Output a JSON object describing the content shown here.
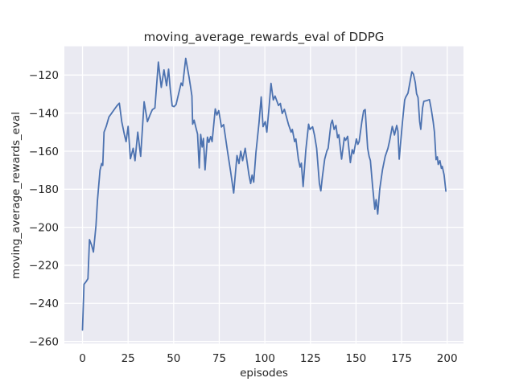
{
  "chart_data": {
    "type": "line",
    "title": "moving_average_rewards_eval of DDPG",
    "xlabel": "episodes",
    "ylabel": "moving_average_rewards_eval",
    "xlim": [
      -9.95,
      208.95
    ],
    "ylim": [
      -261.1,
      -104.9
    ],
    "grid": true,
    "legend": null,
    "x_ticks": {
      "values": [
        0,
        25,
        50,
        75,
        100,
        125,
        150,
        175,
        200
      ],
      "labels": [
        "0",
        "25",
        "50",
        "75",
        "100",
        "125",
        "150",
        "175",
        "200"
      ]
    },
    "y_ticks": {
      "values": [
        -260,
        -240,
        -220,
        -200,
        -180,
        -160,
        -140,
        -120
      ],
      "labels": [
        "−260",
        "−240",
        "−220",
        "−200",
        "−180",
        "−160",
        "−140",
        "−120"
      ]
    },
    "colors": {
      "figure_background": "#ffffff",
      "plot_background": "#eaeaf2",
      "grid": "#ffffff",
      "text": "#262626",
      "line": "#4c72b0"
    },
    "series": [
      {
        "name": "moving_average_rewards_eval",
        "color": "#4c72b0",
        "points": [
          [
            0,
            -254
          ],
          [
            0.8,
            -230
          ],
          [
            2,
            -228.5
          ],
          [
            3,
            -227
          ],
          [
            3.8,
            -206.5
          ],
          [
            5,
            -209.5
          ],
          [
            6,
            -213
          ],
          [
            7.4,
            -199
          ],
          [
            8.2,
            -186
          ],
          [
            9.6,
            -170
          ],
          [
            10.5,
            -166.5
          ],
          [
            11.1,
            -167.5
          ],
          [
            11.8,
            -150
          ],
          [
            13,
            -147
          ],
          [
            14.5,
            -142
          ],
          [
            16,
            -140
          ],
          [
            17.5,
            -138
          ],
          [
            19,
            -136
          ],
          [
            20.2,
            -134.8
          ],
          [
            21.5,
            -144.5
          ],
          [
            23,
            -151.5
          ],
          [
            23.9,
            -155
          ],
          [
            25,
            -147
          ],
          [
            26.3,
            -164
          ],
          [
            27.8,
            -158.5
          ],
          [
            28.8,
            -165
          ],
          [
            30.3,
            -150
          ],
          [
            31.9,
            -162.7
          ],
          [
            33.8,
            -134
          ],
          [
            35.6,
            -144.5
          ],
          [
            37,
            -141
          ],
          [
            38.3,
            -138.2
          ],
          [
            39.7,
            -137.3
          ],
          [
            41.6,
            -113.2
          ],
          [
            43.2,
            -126.5
          ],
          [
            44.7,
            -117.3
          ],
          [
            46.1,
            -125.6
          ],
          [
            47.2,
            -116.9
          ],
          [
            48.1,
            -127
          ],
          [
            49.2,
            -136.2
          ],
          [
            50.2,
            -136.6
          ],
          [
            51.3,
            -135.5
          ],
          [
            54.1,
            -124.2
          ],
          [
            54.9,
            -125.6
          ],
          [
            56.6,
            -111.2
          ],
          [
            58.4,
            -121
          ],
          [
            59.4,
            -127
          ],
          [
            60,
            -131
          ],
          [
            60.4,
            -145.8
          ],
          [
            61.2,
            -143.7
          ],
          [
            62.3,
            -148
          ],
          [
            63.1,
            -151
          ],
          [
            64,
            -168.8
          ],
          [
            64.8,
            -151.2
          ],
          [
            65.6,
            -157.8
          ],
          [
            66.3,
            -153.3
          ],
          [
            67.2,
            -169.8
          ],
          [
            68.5,
            -152.6
          ],
          [
            69.3,
            -155.4
          ],
          [
            70.3,
            -152.3
          ],
          [
            71.1,
            -155
          ],
          [
            72.8,
            -137.8
          ],
          [
            73.7,
            -141
          ],
          [
            74.7,
            -138.7
          ],
          [
            76.2,
            -147.3
          ],
          [
            77.4,
            -146
          ],
          [
            79.5,
            -160
          ],
          [
            81.2,
            -170.5
          ],
          [
            82.9,
            -182
          ],
          [
            84.7,
            -162.3
          ],
          [
            85.8,
            -166.5
          ],
          [
            86.8,
            -160
          ],
          [
            87.8,
            -165
          ],
          [
            89.2,
            -158.5
          ],
          [
            90.3,
            -166
          ],
          [
            91.3,
            -172.5
          ],
          [
            92.2,
            -177
          ],
          [
            93,
            -172.5
          ],
          [
            93.9,
            -176.3
          ],
          [
            95.1,
            -161
          ],
          [
            96.8,
            -145
          ],
          [
            98,
            -131.5
          ],
          [
            99,
            -147.1
          ],
          [
            100.2,
            -144.5
          ],
          [
            101.1,
            -150
          ],
          [
            102.3,
            -137.3
          ],
          [
            103.4,
            -124.4
          ],
          [
            104.6,
            -133.1
          ],
          [
            105.6,
            -131
          ],
          [
            107.5,
            -136
          ],
          [
            108.5,
            -134.9
          ],
          [
            109.5,
            -140.2
          ],
          [
            110.7,
            -138
          ],
          [
            112.9,
            -145.8
          ],
          [
            114.4,
            -150
          ],
          [
            115.1,
            -148.6
          ],
          [
            116.3,
            -155
          ],
          [
            117,
            -153.6
          ],
          [
            118.4,
            -164.2
          ],
          [
            119.3,
            -168.4
          ],
          [
            120,
            -166.3
          ],
          [
            121,
            -178.6
          ],
          [
            122.5,
            -159.2
          ],
          [
            124,
            -145.8
          ],
          [
            124.7,
            -148.6
          ],
          [
            126.2,
            -147.2
          ],
          [
            127.2,
            -151.5
          ],
          [
            128.4,
            -158.5
          ],
          [
            129.9,
            -176.9
          ],
          [
            130.7,
            -180.9
          ],
          [
            131.6,
            -173.3
          ],
          [
            132.8,
            -164.2
          ],
          [
            134,
            -159.9
          ],
          [
            134.7,
            -158.5
          ],
          [
            136.2,
            -145.8
          ],
          [
            137,
            -143.7
          ],
          [
            138,
            -148.6
          ],
          [
            139,
            -146.5
          ],
          [
            139.9,
            -152.9
          ],
          [
            140.6,
            -151.4
          ],
          [
            142.1,
            -164.2
          ],
          [
            143.6,
            -152.9
          ],
          [
            144.3,
            -154.3
          ],
          [
            145.4,
            -152.2
          ],
          [
            146.9,
            -166
          ],
          [
            147.9,
            -159.2
          ],
          [
            148.7,
            -161.3
          ],
          [
            150.2,
            -153.6
          ],
          [
            151,
            -156.4
          ],
          [
            151.7,
            -155
          ],
          [
            153.2,
            -144.4
          ],
          [
            154.2,
            -138.8
          ],
          [
            155,
            -138.1
          ],
          [
            156.4,
            -158.5
          ],
          [
            157.2,
            -162.7
          ],
          [
            157.9,
            -164.9
          ],
          [
            159.1,
            -178.3
          ],
          [
            160.3,
            -190.5
          ],
          [
            161,
            -185.5
          ],
          [
            161.9,
            -193
          ],
          [
            163,
            -180
          ],
          [
            164.5,
            -169.8
          ],
          [
            166,
            -162.7
          ],
          [
            167.5,
            -158.5
          ],
          [
            168.5,
            -154.3
          ],
          [
            169.9,
            -147
          ],
          [
            171.1,
            -151.5
          ],
          [
            172.3,
            -146.5
          ],
          [
            173,
            -149.5
          ],
          [
            173.7,
            -164.2
          ],
          [
            175.5,
            -144.4
          ],
          [
            176.7,
            -133.1
          ],
          [
            177.2,
            -131.7
          ],
          [
            178.5,
            -129.5
          ],
          [
            180.6,
            -118.3
          ],
          [
            181.5,
            -119.5
          ],
          [
            182.5,
            -124
          ],
          [
            183.2,
            -129.8
          ],
          [
            184,
            -131.8
          ],
          [
            184.9,
            -144.4
          ],
          [
            185.5,
            -148.5
          ],
          [
            186.5,
            -137.3
          ],
          [
            187.2,
            -133.8
          ],
          [
            188.5,
            -133.5
          ],
          [
            190.3,
            -132.9
          ],
          [
            191.3,
            -138.1
          ],
          [
            192.3,
            -144.4
          ],
          [
            193,
            -150
          ],
          [
            193.9,
            -164.5
          ],
          [
            194.6,
            -163
          ],
          [
            195.1,
            -167
          ],
          [
            196,
            -165
          ],
          [
            196.8,
            -169
          ],
          [
            197.3,
            -168
          ],
          [
            198.3,
            -172.5
          ],
          [
            199.3,
            -181
          ]
        ]
      }
    ]
  }
}
